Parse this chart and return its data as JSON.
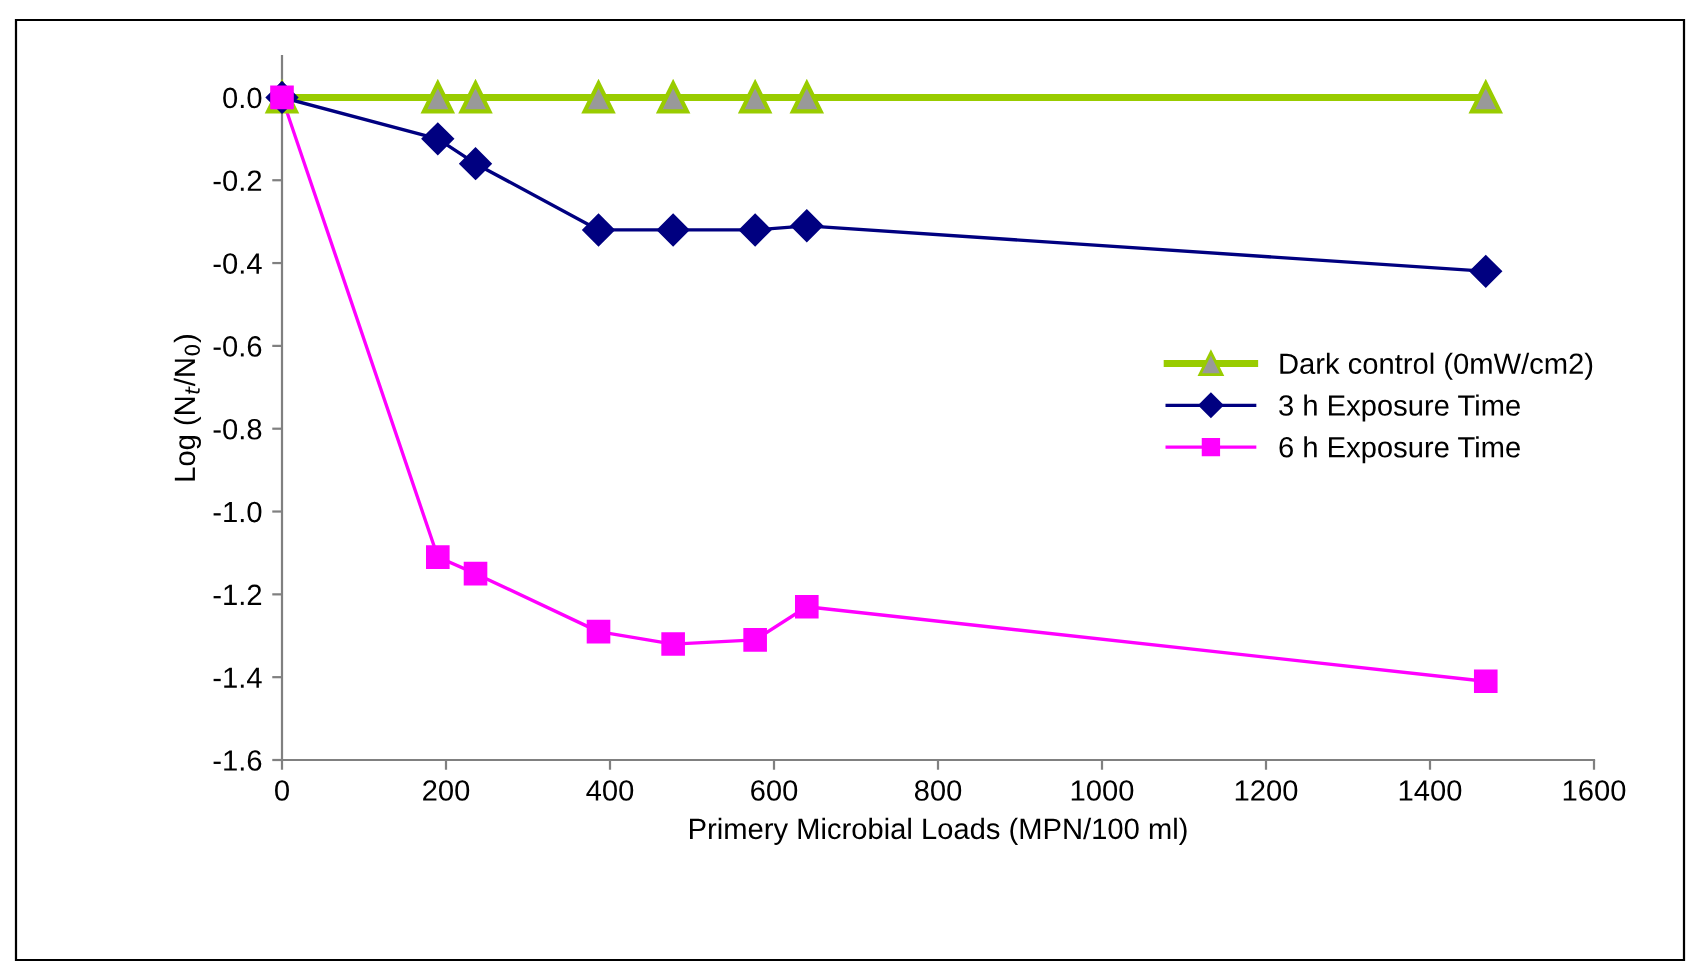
{
  "chart_data": {
    "type": "line",
    "xlabel": "Primery Microbial Loads (MPN/100 ml)",
    "ylabel": "Log (N$_{t}$/N$_{0}$)",
    "x": [
      0,
      190,
      236,
      386,
      477,
      577,
      640,
      1468
    ],
    "series": [
      {
        "name": "Dark control (0mW/cm2)",
        "color": "#99cc00",
        "marker": "triangle",
        "values": [
          0,
          0,
          0,
          0,
          0,
          0,
          0,
          0
        ]
      },
      {
        "name": "3 h Exposure Time",
        "color": "#000080",
        "marker": "diamond",
        "values": [
          0,
          -0.1,
          -0.16,
          -0.32,
          -0.32,
          -0.32,
          -0.31,
          -0.42
        ]
      },
      {
        "name": "6 h Exposure Time",
        "color": "#ff00ff",
        "marker": "square",
        "values": [
          0,
          -1.11,
          -1.15,
          -1.29,
          -1.32,
          -1.31,
          -1.23,
          -1.41
        ]
      }
    ],
    "xlim": [
      0,
      1600
    ],
    "xticks": [
      0,
      200,
      400,
      600,
      800,
      1000,
      1200,
      1400,
      1600
    ],
    "ylim": [
      -1.6,
      0.1
    ],
    "yticks": [
      {
        "value": -1.6,
        "label": "-1.6"
      },
      {
        "value": -1.4,
        "label": "-1.4"
      },
      {
        "value": -1.2,
        "label": "-1.2"
      },
      {
        "value": -1.0,
        "label": "-1.0"
      },
      {
        "value": -0.8,
        "label": "-0.8"
      },
      {
        "value": -0.6,
        "label": "-0.6"
      },
      {
        "value": -0.4,
        "label": "-0.4"
      },
      {
        "value": -0.2,
        "label": "-0.2"
      },
      {
        "value": 0.0,
        "label": "0.0"
      }
    ],
    "grid": false,
    "legend": "right",
    "line_style": "solid"
  }
}
